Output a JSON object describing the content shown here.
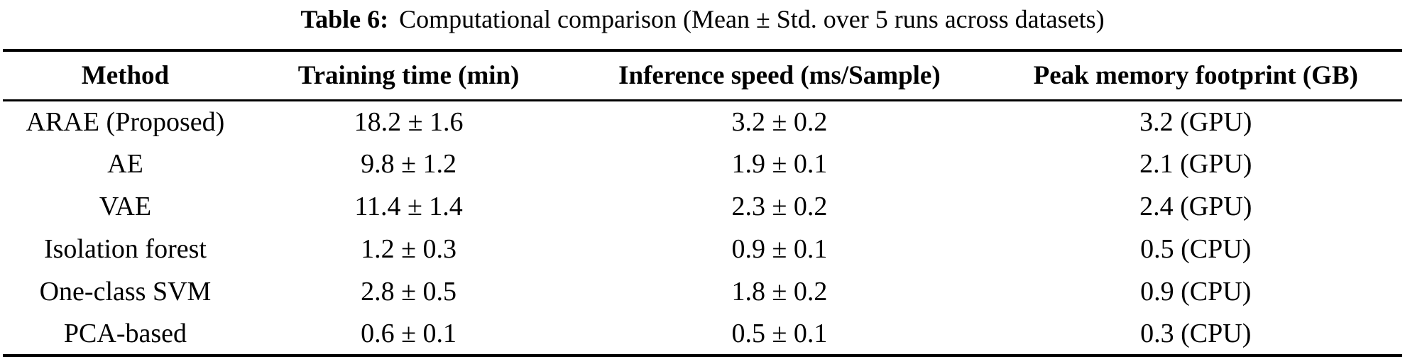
{
  "caption": {
    "label": "Table 6:",
    "text": "Computational comparison (Mean ± Std. over 5 runs across datasets)"
  },
  "table": {
    "columns": [
      "Method",
      "Training time (min)",
      "Inference speed (ms/Sample)",
      "Peak memory footprint (GB)"
    ],
    "rows": [
      {
        "method": "ARAE (Proposed)",
        "training_time": "18.2 ± 1.6",
        "inference_speed": "3.2 ± 0.2",
        "peak_memory": "3.2 (GPU)"
      },
      {
        "method": "AE",
        "training_time": "9.8 ± 1.2",
        "inference_speed": "1.9 ± 0.1",
        "peak_memory": "2.1 (GPU)"
      },
      {
        "method": "VAE",
        "training_time": "11.4 ± 1.4",
        "inference_speed": "2.3 ± 0.2",
        "peak_memory": "2.4 (GPU)"
      },
      {
        "method": "Isolation forest",
        "training_time": "1.2 ± 0.3",
        "inference_speed": "0.9 ± 0.1",
        "peak_memory": "0.5 (CPU)"
      },
      {
        "method": "One-class SVM",
        "training_time": "2.8 ± 0.5",
        "inference_speed": "1.8 ± 0.2",
        "peak_memory": "0.9 (CPU)"
      },
      {
        "method": "PCA-based",
        "training_time": "0.6 ± 0.1",
        "inference_speed": "0.5 ± 0.1",
        "peak_memory": "0.3 (CPU)"
      }
    ]
  },
  "colors": {
    "text": "#000000",
    "background": "#ffffff",
    "rule": "#000000"
  }
}
